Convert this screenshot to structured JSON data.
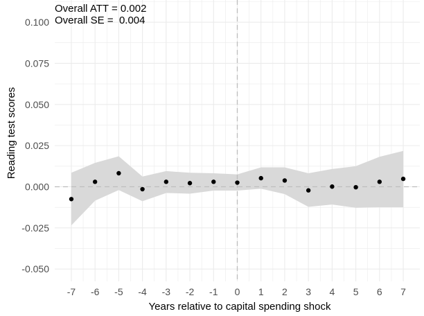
{
  "annotations": {
    "att": "Overall ATT = 0.002",
    "se": "Overall SE =  0.004"
  },
  "chart_data": {
    "type": "scatter",
    "title": "",
    "xlabel": "Years relative to capital spending shock",
    "ylabel": "Reading test scores",
    "x_ticks": [
      -7,
      -6,
      -5,
      -4,
      -3,
      -2,
      -1,
      0,
      1,
      2,
      3,
      4,
      5,
      6,
      7
    ],
    "y_ticks": [
      -0.05,
      -0.025,
      0,
      0.025,
      0.05,
      0.075,
      0.1
    ],
    "y_tick_labels": [
      "-0.050",
      "-0.025",
      "0.000",
      "0.025",
      "0.050",
      "0.075",
      "0.100"
    ],
    "xlim": [
      -7.7,
      7.7
    ],
    "ylim": [
      -0.0575,
      0.1135
    ],
    "grid": true,
    "x": [
      -7,
      -6,
      -5,
      -4,
      -3,
      -2,
      -1,
      0,
      1,
      2,
      3,
      4,
      5,
      6,
      7
    ],
    "estimate": [
      -0.0075,
      0.003,
      0.0082,
      -0.0015,
      0.003,
      0.0022,
      0.003,
      0.0025,
      0.0052,
      0.0038,
      -0.0022,
      0.0001,
      -0.0003,
      0.003,
      0.0048
    ],
    "ci_lower": [
      -0.0235,
      -0.0085,
      -0.002,
      -0.0088,
      -0.0038,
      -0.0042,
      -0.0023,
      -0.0023,
      -0.0012,
      -0.0045,
      -0.0122,
      -0.0108,
      -0.0128,
      -0.0125,
      -0.0125
    ],
    "ci_upper": [
      0.0085,
      0.0145,
      0.0185,
      0.0062,
      0.0095,
      0.0085,
      0.0082,
      0.0075,
      0.0118,
      0.0118,
      0.0082,
      0.0108,
      0.0125,
      0.0182,
      0.0218
    ],
    "colors": {
      "band": "#d9d9d9",
      "point": "#000000",
      "grid": "#ebebeb",
      "reference": "#bebebe"
    }
  }
}
